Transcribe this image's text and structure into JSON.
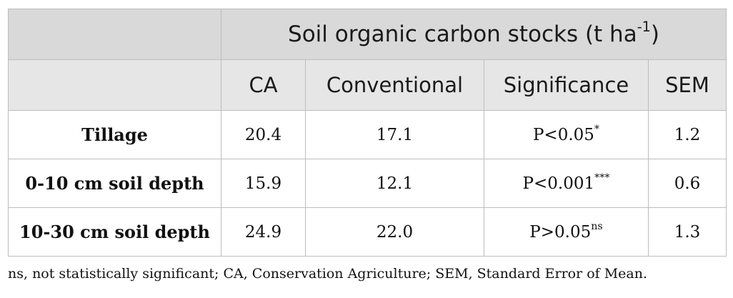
{
  "table": {
    "title": "Soil organic carbon stocks (t ha",
    "title_sup": "-1",
    "title_close": ")",
    "columns": [
      "CA",
      "Conventional",
      "Significance",
      "SEM"
    ],
    "rows": [
      {
        "label": "Tillage",
        "ca": "20.4",
        "conventional": "17.1",
        "significance": "P<0.05",
        "significance_sup": "*",
        "sem": "1.2"
      },
      {
        "label": "0-10 cm soil depth",
        "ca": "15.9",
        "conventional": "12.1",
        "significance": "P<0.001",
        "significance_sup": "***",
        "sem": "0.6"
      },
      {
        "label": "10-30 cm soil depth",
        "ca": "24.9",
        "conventional": "22.0",
        "significance": "P>0.05",
        "significance_sup": "ns",
        "sem": "1.3"
      }
    ]
  },
  "footnote": "ns, not statistically significant; CA, Conservation Agriculture; SEM, Standard Error of Mean."
}
